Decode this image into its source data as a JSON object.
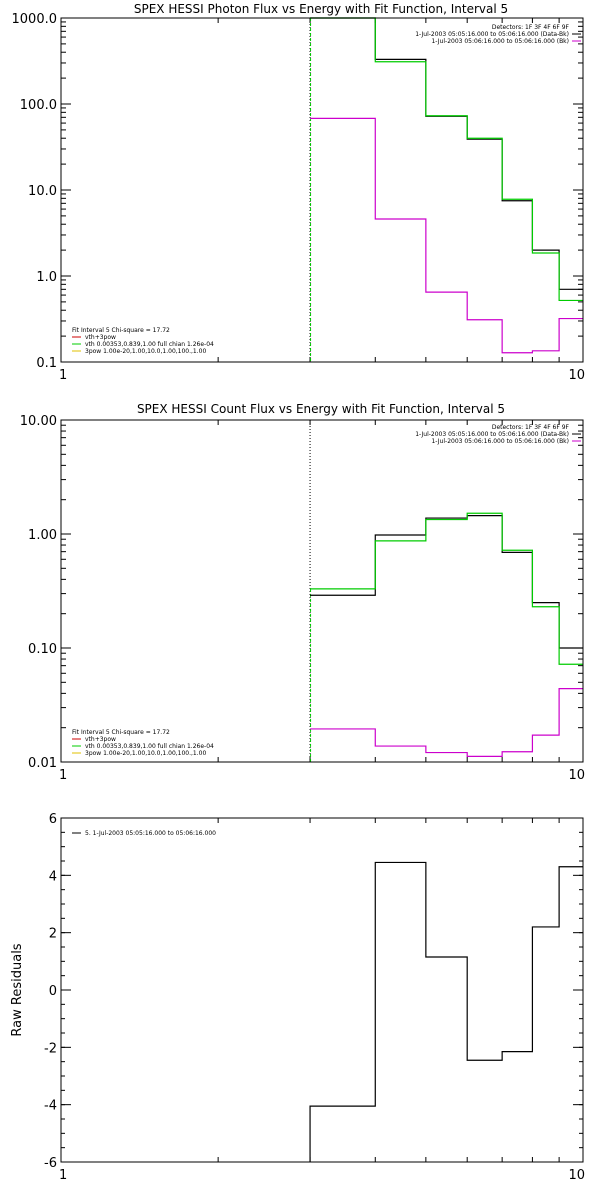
{
  "chart_data": [
    {
      "type": "line",
      "title": "SPEX HESSI Photon Flux vs Energy with Fit Function, Interval 5",
      "xlabel": "",
      "ylabel": "",
      "xscale": "log",
      "yscale": "log",
      "xlim": [
        1,
        10
      ],
      "ylim": [
        0.1,
        1000
      ],
      "grid": false,
      "x_ticks": [
        {
          "value": 1,
          "label": "1"
        },
        {
          "value": 10,
          "label": "10"
        }
      ],
      "y_ticks": [
        {
          "value": 0.1,
          "label": "0.1"
        },
        {
          "value": 1,
          "label": "1.0"
        },
        {
          "value": 10,
          "label": "10.0"
        },
        {
          "value": 100,
          "label": "100.0"
        },
        {
          "value": 1000,
          "label": "1000.0"
        }
      ],
      "bin_edges": [
        3.0,
        4.0,
        5.0,
        6.0,
        7.0,
        8.0,
        9.0,
        10.0
      ],
      "series": [
        {
          "color": "#000000",
          "values": [
            1100,
            330,
            72,
            39,
            7.5,
            2.0,
            0.7
          ]
        },
        {
          "color": "#00cc00",
          "values": [
            1100,
            310,
            73,
            40,
            7.8,
            1.85,
            0.52
          ]
        },
        {
          "color": "#cc00cc",
          "values": [
            68,
            4.6,
            0.65,
            0.31,
            0.128,
            0.135,
            0.32
          ]
        }
      ],
      "marker_x": 3.0,
      "legend_top": {
        "position": "top-right",
        "lines": [
          {
            "text": "Detectors: 1F 3F 4F 6F 9F",
            "color": ""
          },
          {
            "text": "1-Jul-2003 05:05:16.000 to 05:06:16.000 (Data-Bk)",
            "color": "#000000"
          },
          {
            "text": "1-Jul-2003 05:06:16.000 to 05:06:16.000 (Bk)",
            "color": "#cc00cc"
          }
        ]
      },
      "legend_bottom": {
        "position": "bottom-left",
        "lines": [
          {
            "text": "Fit Interval 5   Chi-square = 17.72",
            "color": ""
          },
          {
            "text": "vth+3pow",
            "color": "#cc0000"
          },
          {
            "text": "vth 0.00353,0.839,1.00  full chian 1.26e-04",
            "color": "#00cc00"
          },
          {
            "text": "3pow 1.00e-20,1.00,10.0,1.00,100.,1.00",
            "color": "#e0c000"
          }
        ]
      }
    },
    {
      "type": "line",
      "title": "SPEX HESSI Count Flux vs Energy with Fit Function, Interval 5",
      "xlabel": "",
      "ylabel": "",
      "xscale": "log",
      "yscale": "log",
      "xlim": [
        1,
        10
      ],
      "ylim": [
        0.01,
        10
      ],
      "grid": false,
      "x_ticks": [
        {
          "value": 1,
          "label": "1"
        },
        {
          "value": 10,
          "label": "10"
        }
      ],
      "y_ticks": [
        {
          "value": 0.01,
          "label": "0.01"
        },
        {
          "value": 0.1,
          "label": "0.10"
        },
        {
          "value": 1,
          "label": "1.00"
        },
        {
          "value": 10,
          "label": "10.00"
        }
      ],
      "bin_edges": [
        3.0,
        4.0,
        5.0,
        6.0,
        7.0,
        8.0,
        9.0,
        10.0
      ],
      "series": [
        {
          "color": "#000000",
          "values": [
            0.29,
            0.98,
            1.38,
            1.45,
            0.69,
            0.25,
            0.1
          ]
        },
        {
          "color": "#00cc00",
          "values": [
            0.33,
            0.87,
            1.34,
            1.52,
            0.72,
            0.23,
            0.072
          ]
        },
        {
          "color": "#cc00cc",
          "values": [
            0.0195,
            0.0138,
            0.0121,
            0.0112,
            0.0123,
            0.0172,
            0.044
          ]
        }
      ],
      "marker_x": 3.0,
      "legend_top": {
        "position": "top-right",
        "lines": [
          {
            "text": "Detectors: 1F 3F 4F 6F 9F",
            "color": ""
          },
          {
            "text": "1-Jul-2003 05:05:16.000 to 05:06:16.000 (Data-Bk)",
            "color": "#000000"
          },
          {
            "text": "1-Jul-2003 05:06:16.000 to 05:06:16.000 (Bk)",
            "color": "#cc00cc"
          }
        ]
      },
      "legend_bottom": {
        "position": "bottom-left",
        "lines": [
          {
            "text": "Fit Interval 5   Chi-square = 17.72",
            "color": ""
          },
          {
            "text": "vth+3pow",
            "color": "#cc0000"
          },
          {
            "text": "vth 0.00353,0.839,1.00  full chian 1.26e-04",
            "color": "#00cc00"
          },
          {
            "text": "3pow 1.00e-20,1.00,10.0,1.00,100.,1.00",
            "color": "#e0c000"
          }
        ]
      }
    },
    {
      "type": "line",
      "title": "",
      "xlabel": "",
      "ylabel": "Raw Residuals",
      "xscale": "log",
      "yscale": "linear",
      "xlim": [
        1,
        10
      ],
      "ylim": [
        -6,
        6
      ],
      "grid": false,
      "x_ticks": [
        {
          "value": 1,
          "label": "1"
        },
        {
          "value": 10,
          "label": "10"
        }
      ],
      "y_ticks": [
        {
          "value": -6,
          "label": "-6"
        },
        {
          "value": -4,
          "label": "-4"
        },
        {
          "value": -2,
          "label": "-2"
        },
        {
          "value": 0,
          "label": "0"
        },
        {
          "value": 2,
          "label": "2"
        },
        {
          "value": 4,
          "label": "4"
        },
        {
          "value": 6,
          "label": "6"
        }
      ],
      "bin_edges": [
        3.0,
        4.0,
        5.0,
        6.0,
        7.0,
        8.0,
        9.0,
        10.0
      ],
      "series": [
        {
          "color": "#000000",
          "values": [
            -4.05,
            4.45,
            1.15,
            -2.45,
            -2.15,
            2.2,
            4.3
          ]
        }
      ],
      "legend_top": {
        "position": "top-left",
        "lines": [
          {
            "text": "5. 1-Jul-2003 05:05:16.000 to 05:06:16.000",
            "color": "#000000"
          }
        ]
      }
    }
  ]
}
